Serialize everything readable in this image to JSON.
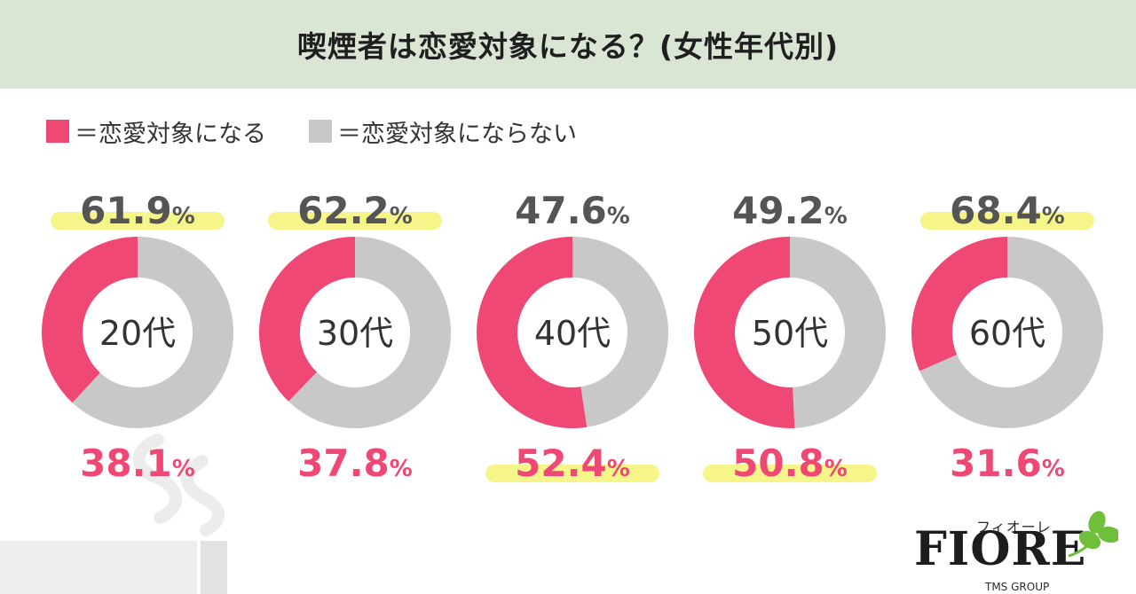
{
  "title": "喫煙者は恋愛対象になる？(女性年代別)",
  "legend": [
    {
      "label": "＝恋愛対象になる",
      "color": "#f04874"
    },
    {
      "label": "＝恋愛対象にならない",
      "color": "#c8c8c8"
    }
  ],
  "colors": {
    "positive": "#f04874",
    "negative": "#c8c8c8",
    "highlight": "#f5f58a",
    "header_bg": "#d8e6d3"
  },
  "chart_data": {
    "type": "pie",
    "variant": "donut",
    "title": "喫煙者は恋愛対象になる？(女性年代別)",
    "categories": [
      "20代",
      "30代",
      "40代",
      "50代",
      "60代"
    ],
    "series": [
      {
        "name": "恋愛対象になる",
        "values": [
          38.1,
          37.8,
          52.4,
          50.8,
          31.6
        ]
      },
      {
        "name": "恋愛対象にならない",
        "values": [
          61.9,
          62.2,
          47.6,
          49.2,
          68.4
        ]
      }
    ],
    "unit": "%",
    "highlighted_majority": [
      "恋愛対象にならない",
      "恋愛対象にならない",
      "恋愛対象になる",
      "恋愛対象になる",
      "恋愛対象にならない"
    ]
  },
  "logo": {
    "kana": "フィオーレ",
    "wordmark": "FIORE",
    "sub": "TMS GROUP"
  }
}
